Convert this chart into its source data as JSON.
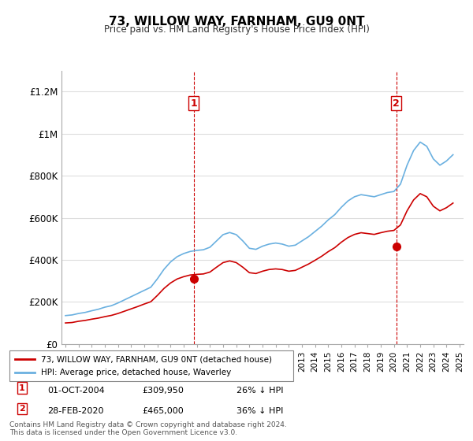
{
  "title": "73, WILLOW WAY, FARNHAM, GU9 0NT",
  "subtitle": "Price paid vs. HM Land Registry's House Price Index (HPI)",
  "legend_line1": "73, WILLOW WAY, FARNHAM, GU9 0NT (detached house)",
  "legend_line2": "HPI: Average price, detached house, Waverley",
  "annotation1_label": "1",
  "annotation1_date": "01-OCT-2004",
  "annotation1_price": "£309,950",
  "annotation1_hpi": "26% ↓ HPI",
  "annotation2_label": "2",
  "annotation2_date": "28-FEB-2020",
  "annotation2_price": "£465,000",
  "annotation2_hpi": "36% ↓ HPI",
  "footer": "Contains HM Land Registry data © Crown copyright and database right 2024.\nThis data is licensed under the Open Government Licence v3.0.",
  "hpi_color": "#6ab0e0",
  "price_color": "#cc0000",
  "annotation_color": "#cc0000",
  "background_color": "#ffffff",
  "grid_color": "#dddddd",
  "ylim": [
    0,
    1300000
  ],
  "yticks": [
    0,
    200000,
    400000,
    600000,
    800000,
    1000000,
    1200000
  ],
  "ytick_labels": [
    "£0",
    "£200K",
    "£400K",
    "£600K",
    "£800K",
    "£1M",
    "£1.2M"
  ],
  "xstart_year": 1995,
  "xend_year": 2025,
  "sale1_year": 2004.75,
  "sale1_price": 309950,
  "sale2_year": 2020.17,
  "sale2_price": 465000,
  "hpi_years": [
    1995,
    1995.5,
    1996,
    1996.5,
    1997,
    1997.5,
    1998,
    1998.5,
    1999,
    1999.5,
    2000,
    2000.5,
    2001,
    2001.5,
    2002,
    2002.5,
    2003,
    2003.5,
    2004,
    2004.5,
    2005,
    2005.5,
    2006,
    2006.5,
    2007,
    2007.5,
    2008,
    2008.5,
    2009,
    2009.5,
    2010,
    2010.5,
    2011,
    2011.5,
    2012,
    2012.5,
    2013,
    2013.5,
    2014,
    2014.5,
    2015,
    2015.5,
    2016,
    2016.5,
    2017,
    2017.5,
    2018,
    2018.5,
    2019,
    2019.5,
    2020,
    2020.5,
    2021,
    2021.5,
    2022,
    2022.5,
    2023,
    2023.5,
    2024,
    2024.5
  ],
  "hpi_values": [
    135000,
    138000,
    145000,
    150000,
    158000,
    165000,
    175000,
    182000,
    195000,
    210000,
    225000,
    240000,
    255000,
    270000,
    310000,
    355000,
    390000,
    415000,
    430000,
    440000,
    445000,
    448000,
    460000,
    490000,
    520000,
    530000,
    520000,
    490000,
    455000,
    450000,
    465000,
    475000,
    480000,
    475000,
    465000,
    470000,
    490000,
    510000,
    535000,
    560000,
    590000,
    615000,
    650000,
    680000,
    700000,
    710000,
    705000,
    700000,
    710000,
    720000,
    725000,
    760000,
    850000,
    920000,
    960000,
    940000,
    880000,
    850000,
    870000,
    900000
  ],
  "price_years": [
    1995,
    1995.5,
    1996,
    1996.5,
    1997,
    1997.5,
    1998,
    1998.5,
    1999,
    1999.5,
    2000,
    2000.5,
    2001,
    2001.5,
    2002,
    2002.5,
    2003,
    2003.5,
    2004,
    2004.5,
    2005,
    2005.5,
    2006,
    2006.5,
    2007,
    2007.5,
    2008,
    2008.5,
    2009,
    2009.5,
    2010,
    2010.5,
    2011,
    2011.5,
    2012,
    2012.5,
    2013,
    2013.5,
    2014,
    2014.5,
    2015,
    2015.5,
    2016,
    2016.5,
    2017,
    2017.5,
    2018,
    2018.5,
    2019,
    2019.5,
    2020,
    2020.5,
    2021,
    2021.5,
    2022,
    2022.5,
    2023,
    2023.5,
    2024,
    2024.5
  ],
  "price_values": [
    100000,
    102000,
    108000,
    112000,
    118000,
    123000,
    130000,
    136000,
    145000,
    156000,
    167000,
    178000,
    190000,
    201000,
    231000,
    264000,
    290000,
    309000,
    320000,
    328000,
    331000,
    333000,
    342000,
    365000,
    387000,
    395000,
    387000,
    365000,
    339000,
    335000,
    346000,
    354000,
    357000,
    354000,
    346000,
    350000,
    365000,
    380000,
    398000,
    417000,
    439000,
    458000,
    484000,
    506000,
    521000,
    529000,
    525000,
    521000,
    529000,
    536000,
    540000,
    566000,
    633000,
    685000,
    715000,
    700000,
    655000,
    633000,
    648000,
    670000
  ]
}
